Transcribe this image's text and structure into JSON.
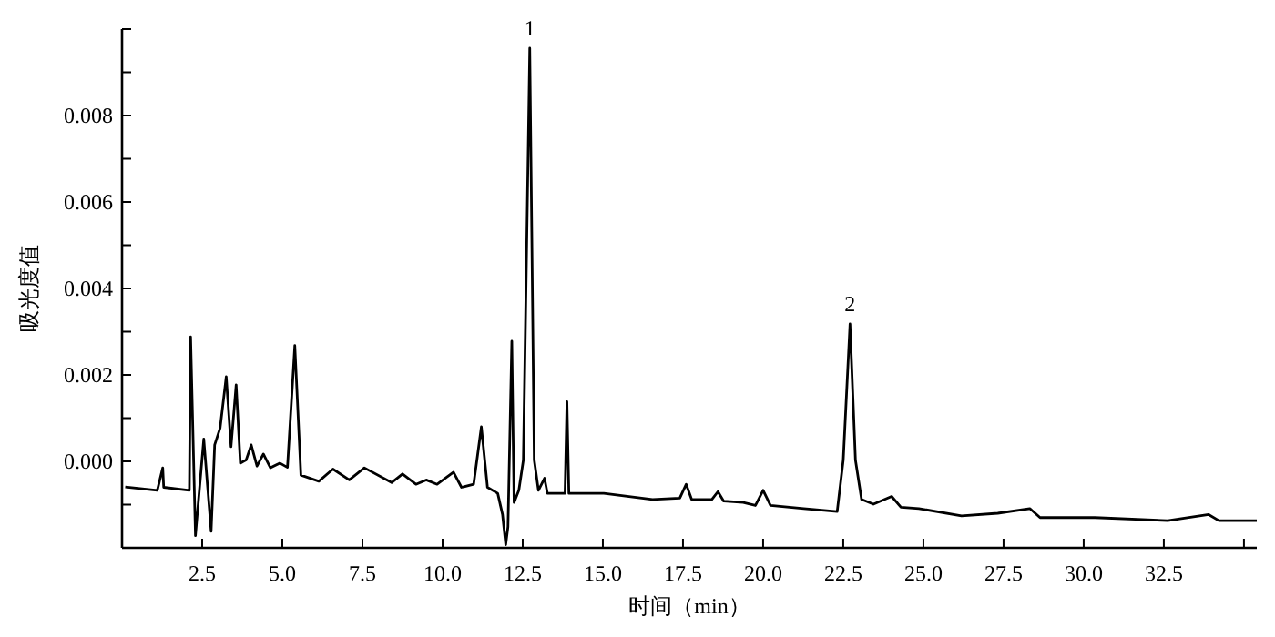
{
  "chart_data": {
    "type": "line",
    "xlabel": "时间（min）",
    "ylabel": "吸光度值",
    "color": "#000000",
    "x": [
      0.1,
      1.1,
      1.27,
      1.3,
      2.1,
      2.14,
      2.29,
      2.55,
      2.78,
      2.89,
      3.06,
      3.25,
      3.4,
      3.56,
      3.69,
      3.87,
      4.03,
      4.21,
      4.41,
      4.63,
      4.92,
      5.16,
      5.39,
      5.58,
      6.14,
      6.58,
      7.09,
      7.56,
      8.41,
      8.75,
      9.17,
      9.49,
      9.83,
      10.34,
      10.59,
      10.97,
      11.21,
      11.4,
      11.72,
      11.87,
      11.97,
      12.04,
      12.16,
      12.23,
      12.38,
      12.52,
      12.72,
      12.86,
      12.99,
      13.18,
      13.27,
      13.82,
      13.88,
      13.94,
      15.03,
      16.55,
      17.4,
      17.6,
      17.77,
      18.4,
      18.59,
      18.77,
      19.38,
      19.76,
      20.0,
      20.23,
      21.27,
      22.31,
      22.5,
      22.71,
      22.88,
      23.07,
      23.44,
      24.01,
      24.3,
      24.86,
      26.19,
      27.32,
      28.32,
      28.64,
      30.35,
      32.62,
      33.9,
      34.22,
      35.4
    ],
    "values": [
      -0.00059,
      -0.00067,
      -0.00015,
      -0.0006,
      -0.00067,
      0.00288,
      -0.00172,
      0.00052,
      -0.00162,
      0.00038,
      0.00077,
      0.00196,
      0.00034,
      0.00177,
      -4e-05,
      3e-05,
      0.00038,
      -0.00011,
      0.00017,
      -0.00015,
      -4e-05,
      -0.00014,
      0.00268,
      -0.00032,
      -0.00046,
      -0.00018,
      -0.00043,
      -0.00015,
      -0.00049,
      -0.00029,
      -0.00053,
      -0.00043,
      -0.00053,
      -0.00025,
      -0.0006,
      -0.00053,
      0.0008,
      -0.0006,
      -0.00074,
      -0.00123,
      -0.00193,
      -0.00151,
      0.00278,
      -0.00095,
      -0.00067,
      3e-05,
      0.00956,
      3e-05,
      -0.00067,
      -0.00039,
      -0.00074,
      -0.00074,
      0.00138,
      -0.00074,
      -0.00074,
      -0.00088,
      -0.00085,
      -0.00053,
      -0.00088,
      -0.00088,
      -0.0007,
      -0.00092,
      -0.00095,
      -0.00102,
      -0.00067,
      -0.00102,
      -0.00109,
      -0.00116,
      3e-05,
      0.00318,
      3e-05,
      -0.00088,
      -0.00099,
      -0.00081,
      -0.00106,
      -0.00109,
      -0.00126,
      -0.0012,
      -0.00109,
      -0.0013,
      -0.0013,
      -0.00137,
      -0.00123,
      -0.00137,
      -0.00137
    ],
    "xlim": [
      0,
      35.4
    ],
    "ylim": [
      -0.002,
      0.01
    ],
    "xticks": [
      {
        "value": 2.5,
        "label": "2.5"
      },
      {
        "value": 5,
        "label": "5.0"
      },
      {
        "value": 7.5,
        "label": "7.5"
      },
      {
        "value": 10,
        "label": "10.0"
      },
      {
        "value": 12.5,
        "label": "12.5"
      },
      {
        "value": 15,
        "label": "15.0"
      },
      {
        "value": 17.5,
        "label": "17.5"
      },
      {
        "value": 20,
        "label": "20.0"
      },
      {
        "value": 22.5,
        "label": "22.5"
      },
      {
        "value": 25,
        "label": "25.0"
      },
      {
        "value": 27.5,
        "label": "27.5"
      },
      {
        "value": 30,
        "label": "30.0"
      },
      {
        "value": 32.5,
        "label": "32.5"
      },
      {
        "value": 35,
        "label": null
      }
    ],
    "yticks": [
      {
        "value": -0.002,
        "label": null
      },
      {
        "value": -0.001,
        "label": null
      },
      {
        "value": 0,
        "label": "0.000"
      },
      {
        "value": 0.001,
        "label": null
      },
      {
        "value": 0.002,
        "label": "0.002"
      },
      {
        "value": 0.003,
        "label": null
      },
      {
        "value": 0.004,
        "label": "0.004"
      },
      {
        "value": 0.005,
        "label": null
      },
      {
        "value": 0.006,
        "label": "0.006"
      },
      {
        "value": 0.007,
        "label": null
      },
      {
        "value": 0.008,
        "label": "0.008"
      },
      {
        "value": 0.009,
        "label": null
      },
      {
        "value": 0.01,
        "label": null
      }
    ],
    "annotations": [
      {
        "text": "1",
        "x": 12.72,
        "y": 0.00956
      },
      {
        "text": "2",
        "x": 22.71,
        "y": 0.00318
      }
    ]
  }
}
